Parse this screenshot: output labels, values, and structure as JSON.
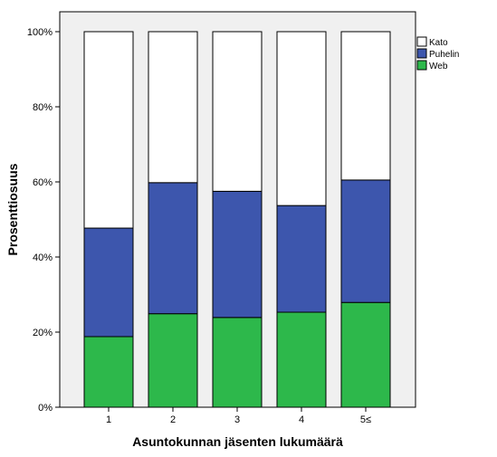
{
  "chart_data": {
    "type": "bar",
    "stacked": true,
    "percent": true,
    "categories": [
      "1",
      "2",
      "3",
      "4",
      "5≤"
    ],
    "series": [
      {
        "name": "Web",
        "color": "#2db84b",
        "values": [
          18.8,
          24.9,
          23.9,
          25.3,
          27.9
        ]
      },
      {
        "name": "Puhelin",
        "color": "#3d56ad",
        "values": [
          28.9,
          34.9,
          33.6,
          28.4,
          32.6
        ]
      },
      {
        "name": "Kato",
        "color": "#ffffff",
        "values": [
          52.3,
          40.2,
          42.5,
          46.3,
          39.5
        ]
      }
    ],
    "legend_order": [
      "Kato",
      "Puhelin",
      "Web"
    ],
    "legend_position": "top-right",
    "xlabel": "Asuntokunnan jäsenten lukumäärä",
    "ylabel": "Prosenttiosuus",
    "ylim": [
      0,
      100
    ],
    "yticks": [
      "0%",
      "20%",
      "40%",
      "60%",
      "80%",
      "100%"
    ],
    "grid": false,
    "plot_background": "#f0f0f0"
  }
}
